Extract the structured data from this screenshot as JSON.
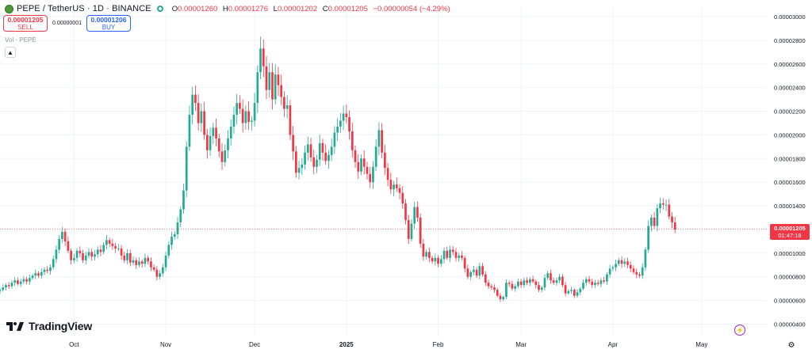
{
  "header": {
    "title": "PEPE / TetherUS · 1D · BINANCE",
    "open_label": "O",
    "open_value": "0.00001260",
    "high_label": "H",
    "high_value": "0.00001276",
    "low_label": "L",
    "low_value": "0.00001202",
    "close_label": "C",
    "close_value": "0.00001205",
    "change_value": "−0.00000054 (−4.29%)"
  },
  "trade": {
    "sell_price": "0.00001205",
    "sell_label": "SELL",
    "spread": "0.00000001",
    "buy_price": "0.00001206",
    "buy_label": "BUY"
  },
  "volume_label": "Vol · PEPE",
  "logo_text": "TradingView",
  "current_price": {
    "value": "0.00001205",
    "countdown": "01:47:18"
  },
  "icons": {
    "coin": "pepe-coin-icon",
    "live": "live-dot-icon",
    "collapse": "chevron-up-icon",
    "flash": "lightning-icon",
    "settings": "gear-icon"
  },
  "colors": {
    "up": "#22ab94",
    "down": "#f23645",
    "grid": "#f0f3fa",
    "buy": "#2962ff"
  },
  "chart_data": {
    "type": "candlestick",
    "ylim": [
      3.9e-06,
      3.02e-05
    ],
    "y_ticks": [
      "0.00000400",
      "0.00000600",
      "0.00000800",
      "0.00001000",
      "0.00001200",
      "0.00001400",
      "0.00001600",
      "0.00001800",
      "0.00002000",
      "0.00002200",
      "0.00002400",
      "0.00002600",
      "0.00002800",
      "0.00003000"
    ],
    "y_tick_values": [
      4e-06,
      6e-06,
      8e-06,
      1e-05,
      1.2e-05,
      1.4e-05,
      1.6e-05,
      1.8e-05,
      2e-05,
      2.2e-05,
      2.4e-05,
      2.6e-05,
      2.8e-05,
      3e-05
    ],
    "x_range": [
      "2024-09-06",
      "2025-05-23"
    ],
    "x_ticks": [
      {
        "label": "Oct",
        "date": "2024-10-01"
      },
      {
        "label": "Nov",
        "date": "2024-11-01"
      },
      {
        "label": "Dec",
        "date": "2024-12-01"
      },
      {
        "label": "2025",
        "date": "2025-01-01"
      },
      {
        "label": "Feb",
        "date": "2025-02-01"
      },
      {
        "label": "Mar",
        "date": "2025-03-01"
      },
      {
        "label": "Apr",
        "date": "2025-04-01"
      },
      {
        "label": "May",
        "date": "2025-05-01"
      }
    ],
    "start_date": "2024-09-06",
    "current_price_line": 1.205e-05,
    "closes": [
      6.9e-06,
      7.1e-06,
      7.3e-06,
      7.2e-06,
      7.5e-06,
      7.7e-06,
      7.4e-06,
      7.6e-06,
      7.8e-06,
      7.6e-06,
      7.9e-06,
      8.1e-06,
      8.3e-06,
      8.1e-06,
      8.4e-06,
      8.6e-06,
      8.5e-06,
      8.8e-06,
      9.5e-06,
      1.03e-05,
      1.12e-05,
      1.18e-05,
      1.1e-05,
      1.02e-05,
      9.4e-06,
      9.6e-06,
      1.02e-05,
      1e-05,
      9.4e-06,
      9.8e-06,
      1.01e-05,
      9.7e-06,
      9.9e-06,
      1.03e-05,
      1.01e-05,
      1.07e-05,
      1.11e-05,
      1.08e-05,
      1.06e-05,
      1.04e-05,
      1.04e-05,
      9.8e-06,
      9.4e-06,
      1e-05,
      9.2e-06,
      9.4e-06,
      9e-06,
      9.3e-06,
      9.1e-06,
      9.6e-06,
      9.3e-06,
      8.8e-06,
      8.6e-06,
      8e-06,
      8.3e-06,
      8.8e-06,
      9.8e-06,
      1.07e-05,
      1.14e-05,
      1.16e-05,
      1.26e-05,
      1.37e-05,
      1.53e-05,
      1.9e-05,
      2.17e-05,
      2.34e-05,
      2.27e-05,
      2.1e-05,
      2.2e-05,
      2e-05,
      1.87e-05,
      1.99e-05,
      2.06e-05,
      1.97e-05,
      1.86e-05,
      1.77e-05,
      1.87e-05,
      1.97e-05,
      2.07e-05,
      2.17e-05,
      2.27e-05,
      2.22e-05,
      2.1e-05,
      2.2e-05,
      2.11e-05,
      2.12e-05,
      2.27e-05,
      2.53e-05,
      2.73e-05,
      2.58e-05,
      2.38e-05,
      2.53e-05,
      2.3e-05,
      2.51e-05,
      2.42e-05,
      2.32e-05,
      2.22e-05,
      2.25e-05,
      2e-05,
      1.86e-05,
      1.68e-05,
      1.72e-05,
      1.75e-05,
      1.85e-05,
      1.92e-05,
      1.81e-05,
      1.73e-05,
      1.79e-05,
      1.93e-05,
      1.85e-05,
      1.78e-05,
      1.83e-05,
      1.9e-05,
      2.02e-05,
      2.07e-05,
      2.12e-05,
      2.18e-05,
      2.15e-05,
      2.03e-05,
      1.87e-05,
      1.77e-05,
      1.69e-05,
      1.8e-05,
      1.73e-05,
      1.67e-05,
      1.6e-05,
      1.73e-05,
      1.9e-05,
      2.04e-05,
      1.85e-05,
      1.72e-05,
      1.62e-05,
      1.54e-05,
      1.58e-05,
      1.55e-05,
      1.51e-05,
      1.42e-05,
      1.28e-05,
      1.12e-05,
      1.25e-05,
      1.39e-05,
      1.3e-05,
      1.08e-05,
      9.7e-06,
      1.01e-05,
      9.6e-06,
      9.3e-06,
      9.6e-06,
      9.1e-06,
      9.5e-06,
      1.02e-05,
      9.6e-06,
      1.03e-05,
      1.01e-05,
      9.6e-06,
      9.8e-06,
      9.6e-06,
      8.7e-06,
      8e-06,
      8.4e-06,
      8.6e-06,
      8.1e-06,
      8.9e-06,
      8.2e-06,
      7.5e-06,
      7.2e-06,
      7.1e-06,
      6.9e-06,
      6.4e-06,
      6.1e-06,
      6.3e-06,
      7.5e-06,
      7.4e-06,
      7e-06,
      7.2e-06,
      7.6e-06,
      7.3e-06,
      7.7e-06,
      7.5e-06,
      7.8e-06,
      7.6e-06,
      7.3e-06,
      6.9e-06,
      7.1e-06,
      7.9e-06,
      8.3e-06,
      7.7e-06,
      7.5e-06,
      7.7e-06,
      8e-06,
      7.3e-06,
      6.6e-06,
      6.8e-06,
      6.9e-06,
      6.4e-06,
      6.7e-06,
      7e-06,
      7.5e-06,
      7.8e-06,
      7.6e-06,
      7.3e-06,
      7.5e-06,
      7.4e-06,
      7.7e-06,
      7.6e-06,
      8.2e-06,
      8.7e-06,
      8.8e-06,
      9.1e-06,
      9.4e-06,
      9.1e-06,
      9.3e-06,
      9e-06,
      8.7e-06,
      8.4e-06,
      8.2e-06,
      8.1e-06,
      8.8e-06,
      1.03e-05,
      1.23e-05,
      1.3e-05,
      1.23e-05,
      1.38e-05,
      1.42e-05,
      1.41e-05,
      1.41e-05,
      1.31e-05,
      1.26e-05,
      1.2e-05
    ]
  }
}
